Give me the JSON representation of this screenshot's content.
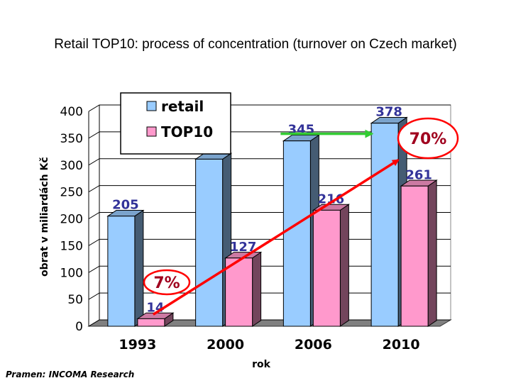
{
  "title": "Retail TOP10: process of concentration (turnover on Czech market)",
  "source": "Pramen: INCOMA Research",
  "chart_data": {
    "type": "bar",
    "categories": [
      "1993",
      "2000",
      "2006",
      "2010"
    ],
    "series": [
      {
        "name": "retail",
        "values": [
          205,
          311,
          345,
          378
        ],
        "color": "#99ccff"
      },
      {
        "name": "TOP10",
        "values": [
          14,
          127,
          216,
          261
        ],
        "color": "#ff99cc"
      }
    ],
    "ylim": [
      0,
      400
    ],
    "yticks": [
      0,
      50,
      100,
      150,
      200,
      250,
      300,
      350,
      400
    ],
    "xlabel": "rok",
    "ylabel": "obrat v miliardách Kč",
    "label_color": "#333399",
    "annotations": [
      {
        "text": "7%",
        "year": "1993"
      },
      {
        "text": "70%",
        "year": "2010"
      }
    ],
    "legend": "top-center"
  }
}
